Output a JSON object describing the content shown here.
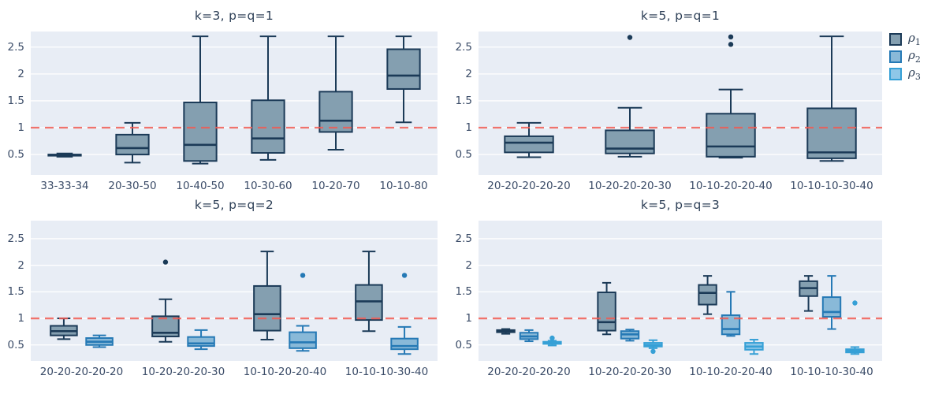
{
  "page": {
    "background": "#ffffff"
  },
  "colors": {
    "plot_bg": "#e8edf5",
    "grid": "#ffffff",
    "title_text": "#2f4158",
    "tick_text": "#3b4c68",
    "ref_line": "#f05c54"
  },
  "legend": {
    "items": [
      {
        "symbol": "ρ",
        "subscript": "1",
        "series": "rho1"
      },
      {
        "symbol": "ρ",
        "subscript": "2",
        "series": "rho2"
      },
      {
        "symbol": "ρ",
        "subscript": "3",
        "series": "rho3"
      }
    ]
  },
  "series_styles": {
    "rho1": {
      "stroke": "#1b3a57",
      "fill": "#849fb0"
    },
    "rho2": {
      "stroke": "#2579b5",
      "fill": "#89b9d8"
    },
    "rho3": {
      "stroke": "#36a0d6",
      "fill": "#8fc7e8"
    }
  },
  "chart_data": [
    {
      "type": "box",
      "title": "k=3, p=q=1",
      "categories": [
        "33-33-34",
        "20-30-50",
        "10-40-50",
        "10-30-60",
        "10-20-70",
        "10-10-80"
      ],
      "yticks": [
        0.5,
        1,
        1.5,
        2,
        2.5
      ],
      "ylim": [
        0.12,
        2.79
      ],
      "ref_line_y": 1,
      "grid": true,
      "series": [
        {
          "name": "rho1",
          "boxes": [
            {
              "lo": 0.46,
              "q1": 0.48,
              "med": 0.49,
              "q3": 0.5,
              "hi": 0.52,
              "outliers": []
            },
            {
              "lo": 0.35,
              "q1": 0.5,
              "med": 0.62,
              "q3": 0.87,
              "hi": 1.09,
              "outliers": []
            },
            {
              "lo": 0.33,
              "q1": 0.38,
              "med": 0.68,
              "q3": 1.47,
              "hi": 2.7,
              "outliers": []
            },
            {
              "lo": 0.4,
              "q1": 0.53,
              "med": 0.8,
              "q3": 1.51,
              "hi": 2.7,
              "outliers": []
            },
            {
              "lo": 0.59,
              "q1": 0.92,
              "med": 1.13,
              "q3": 1.67,
              "hi": 2.7,
              "outliers": []
            },
            {
              "lo": 1.1,
              "q1": 1.72,
              "med": 1.97,
              "q3": 2.46,
              "hi": 2.7,
              "outliers": []
            }
          ]
        }
      ]
    },
    {
      "type": "box",
      "title": "k=5, p=q=1",
      "categories": [
        "20-20-20-20-20",
        "10-20-20-20-30",
        "10-10-20-20-40",
        "10-10-10-30-40"
      ],
      "yticks": [
        0.5,
        1,
        1.5,
        2,
        2.5
      ],
      "ylim": [
        0.12,
        2.79
      ],
      "ref_line_y": 1,
      "grid": true,
      "series": [
        {
          "name": "rho1",
          "boxes": [
            {
              "lo": 0.45,
              "q1": 0.54,
              "med": 0.72,
              "q3": 0.84,
              "hi": 1.09,
              "outliers": []
            },
            {
              "lo": 0.46,
              "q1": 0.52,
              "med": 0.61,
              "q3": 0.95,
              "hi": 1.37,
              "outliers": [
                2.68
              ]
            },
            {
              "lo": 0.44,
              "q1": 0.46,
              "med": 0.65,
              "q3": 1.26,
              "hi": 1.71,
              "outliers": [
                2.55,
                2.69
              ]
            },
            {
              "lo": 0.38,
              "q1": 0.43,
              "med": 0.54,
              "q3": 1.36,
              "hi": 2.7,
              "outliers": []
            }
          ]
        }
      ]
    },
    {
      "type": "box",
      "title": "k=5, p=q=2",
      "categories": [
        "20-20-20-20-20",
        "10-20-20-20-30",
        "10-10-20-20-40",
        "10-10-10-30-40"
      ],
      "yticks": [
        0.5,
        1,
        1.5,
        2,
        2.5
      ],
      "ylim": [
        0.2,
        2.84
      ],
      "ref_line_y": 1,
      "grid": true,
      "series": [
        {
          "name": "rho1",
          "boxes": [
            {
              "lo": 0.61,
              "q1": 0.68,
              "med": 0.76,
              "q3": 0.86,
              "hi": 1.0,
              "outliers": []
            },
            {
              "lo": 0.56,
              "q1": 0.66,
              "med": 0.73,
              "q3": 1.04,
              "hi": 1.36,
              "outliers": [
                2.06
              ]
            },
            {
              "lo": 0.6,
              "q1": 0.77,
              "med": 1.08,
              "q3": 1.61,
              "hi": 2.26,
              "outliers": []
            },
            {
              "lo": 0.76,
              "q1": 0.97,
              "med": 1.32,
              "q3": 1.63,
              "hi": 2.26,
              "outliers": []
            }
          ]
        },
        {
          "name": "rho2",
          "boxes": [
            {
              "lo": 0.46,
              "q1": 0.5,
              "med": 0.56,
              "q3": 0.63,
              "hi": 0.68,
              "outliers": []
            },
            {
              "lo": 0.42,
              "q1": 0.48,
              "med": 0.53,
              "q3": 0.65,
              "hi": 0.78,
              "outliers": []
            },
            {
              "lo": 0.39,
              "q1": 0.44,
              "med": 0.55,
              "q3": 0.74,
              "hi": 0.86,
              "outliers": [
                1.81
              ]
            },
            {
              "lo": 0.33,
              "q1": 0.42,
              "med": 0.48,
              "q3": 0.62,
              "hi": 0.84,
              "outliers": [
                1.81
              ]
            }
          ]
        }
      ]
    },
    {
      "type": "box",
      "title": "k=5, p=q=3",
      "categories": [
        "20-20-20-20-20",
        "10-20-20-20-30",
        "10-10-20-20-40",
        "10-10-10-30-40"
      ],
      "yticks": [
        0.5,
        1,
        1.5,
        2,
        2.5
      ],
      "ylim": [
        0.2,
        2.84
      ],
      "ref_line_y": 1,
      "grid": true,
      "series": [
        {
          "name": "rho1",
          "boxes": [
            {
              "lo": 0.71,
              "q1": 0.74,
              "med": 0.76,
              "q3": 0.78,
              "hi": 0.8,
              "outliers": []
            },
            {
              "lo": 0.7,
              "q1": 0.77,
              "med": 0.93,
              "q3": 1.49,
              "hi": 1.67,
              "outliers": []
            },
            {
              "lo": 1.08,
              "q1": 1.26,
              "med": 1.48,
              "q3": 1.63,
              "hi": 1.8,
              "outliers": []
            },
            {
              "lo": 1.14,
              "q1": 1.42,
              "med": 1.57,
              "q3": 1.7,
              "hi": 1.8,
              "outliers": []
            }
          ]
        },
        {
          "name": "rho2",
          "boxes": [
            {
              "lo": 0.57,
              "q1": 0.61,
              "med": 0.66,
              "q3": 0.73,
              "hi": 0.78,
              "outliers": []
            },
            {
              "lo": 0.58,
              "q1": 0.62,
              "med": 0.7,
              "q3": 0.76,
              "hi": 0.79,
              "outliers": []
            },
            {
              "lo": 0.67,
              "q1": 0.7,
              "med": 0.8,
              "q3": 1.06,
              "hi": 1.5,
              "outliers": []
            },
            {
              "lo": 0.8,
              "q1": 1.03,
              "med": 1.12,
              "q3": 1.4,
              "hi": 1.8,
              "outliers": []
            }
          ]
        },
        {
          "name": "rho3",
          "boxes": [
            {
              "lo": 0.49,
              "q1": 0.52,
              "med": 0.54,
              "q3": 0.56,
              "hi": 0.58,
              "outliers": [
                0.63
              ]
            },
            {
              "lo": 0.44,
              "q1": 0.47,
              "med": 0.5,
              "q3": 0.54,
              "hi": 0.59,
              "outliers": [
                0.38
              ]
            },
            {
              "lo": 0.33,
              "q1": 0.41,
              "med": 0.47,
              "q3": 0.54,
              "hi": 0.6,
              "outliers": []
            },
            {
              "lo": 0.33,
              "q1": 0.36,
              "med": 0.39,
              "q3": 0.42,
              "hi": 0.46,
              "outliers": [
                1.29
              ]
            }
          ]
        }
      ]
    }
  ]
}
